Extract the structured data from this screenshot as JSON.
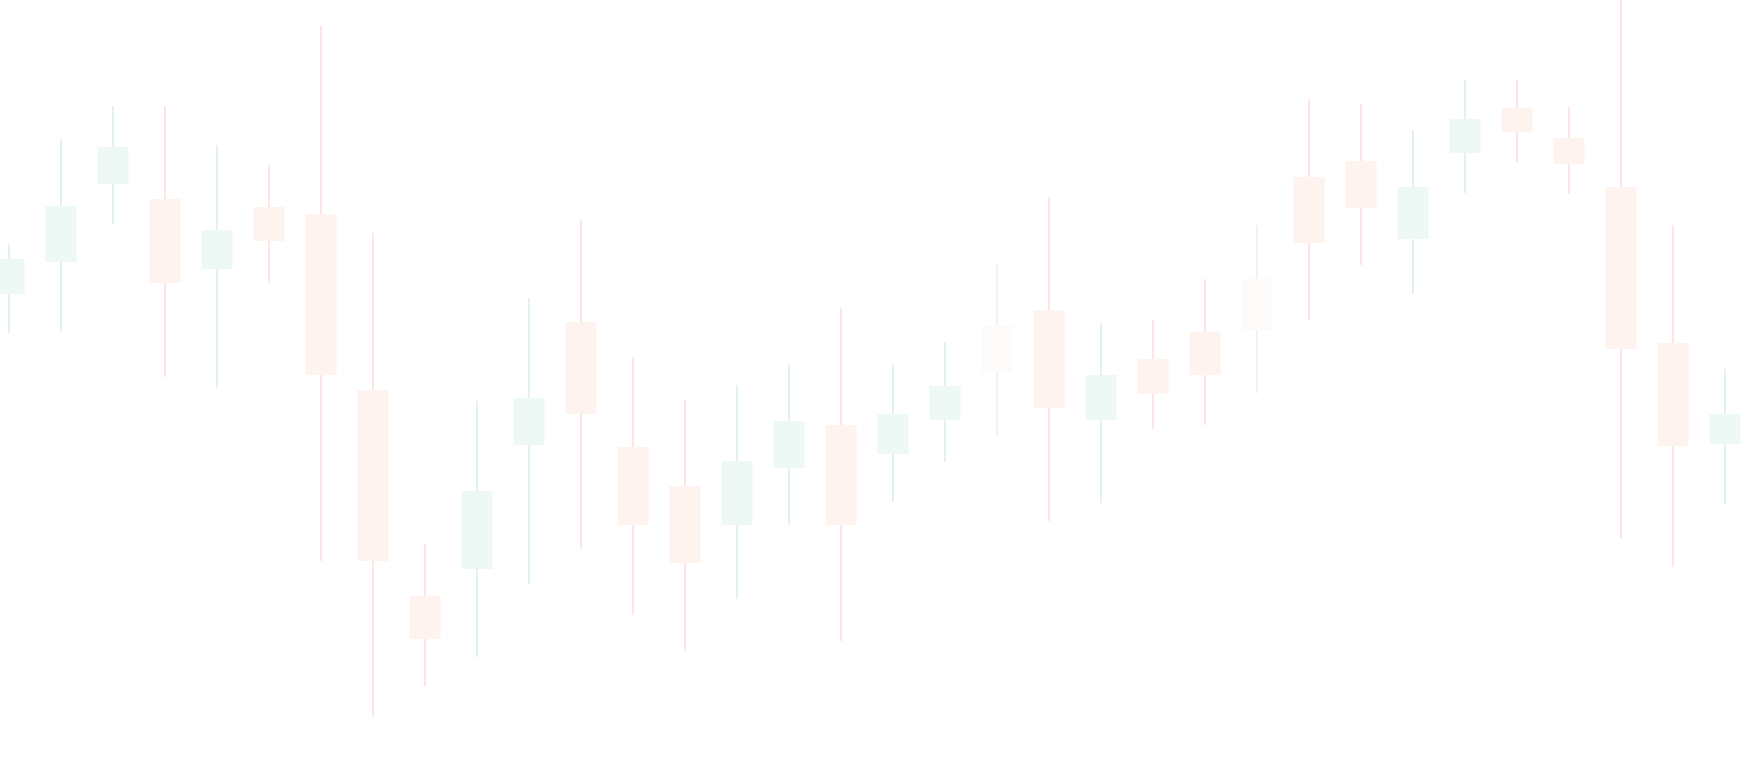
{
  "chart_data": {
    "type": "candlestick",
    "title": "",
    "xlabel": "",
    "ylabel": "",
    "axes_visible": false,
    "grid": false,
    "legend": "none",
    "ylim": [
      0,
      759
    ],
    "colors": {
      "up_body": "#eef9f6",
      "up_wick": "#e2f3ee",
      "down_body": "#fff3f0",
      "down_wick": "#fde6e1",
      "neutral_body": "#fdfafa",
      "neutral_wick": "#f8efee",
      "background": "#ffffff"
    },
    "candles": [
      {
        "dir": "up",
        "open": 465,
        "close": 500,
        "high": 515,
        "low": 426
      },
      {
        "dir": "up",
        "open": 497,
        "close": 553,
        "high": 620,
        "low": 427
      },
      {
        "dir": "up",
        "open": 575,
        "close": 612,
        "high": 653,
        "low": 535
      },
      {
        "dir": "down",
        "open": 560,
        "close": 476,
        "high": 653,
        "low": 382
      },
      {
        "dir": "up",
        "open": 490,
        "close": 529,
        "high": 614,
        "low": 371
      },
      {
        "dir": "down",
        "open": 552,
        "close": 518,
        "high": 594,
        "low": 476
      },
      {
        "dir": "down",
        "open": 545,
        "close": 384,
        "high": 733,
        "low": 198
      },
      {
        "dir": "down",
        "open": 369,
        "close": 198,
        "high": 526,
        "low": 42
      },
      {
        "dir": "down",
        "open": 163,
        "close": 120,
        "high": 215,
        "low": 73
      },
      {
        "dir": "up",
        "open": 190,
        "close": 268,
        "high": 358,
        "low": 102
      },
      {
        "dir": "up",
        "open": 314,
        "close": 361,
        "high": 461,
        "low": 175
      },
      {
        "dir": "down",
        "open": 437,
        "close": 345,
        "high": 539,
        "low": 210
      },
      {
        "dir": "down",
        "open": 312,
        "close": 234,
        "high": 402,
        "low": 144
      },
      {
        "dir": "down",
        "open": 273,
        "close": 196,
        "high": 359,
        "low": 108
      },
      {
        "dir": "up",
        "open": 234,
        "close": 298,
        "high": 374,
        "low": 160
      },
      {
        "dir": "up",
        "open": 291,
        "close": 338,
        "high": 395,
        "low": 234
      },
      {
        "dir": "down",
        "open": 334,
        "close": 234,
        "high": 451,
        "low": 118
      },
      {
        "dir": "up",
        "open": 305,
        "close": 345,
        "high": 395,
        "low": 257
      },
      {
        "dir": "up",
        "open": 339,
        "close": 373,
        "high": 417,
        "low": 297
      },
      {
        "dir": "neutral",
        "open": 433,
        "close": 387,
        "high": 495,
        "low": 324
      },
      {
        "dir": "down",
        "open": 449,
        "close": 351,
        "high": 562,
        "low": 238
      },
      {
        "dir": "up",
        "open": 339,
        "close": 384,
        "high": 436,
        "low": 256
      },
      {
        "dir": "down",
        "open": 400,
        "close": 365,
        "high": 439,
        "low": 330
      },
      {
        "dir": "down",
        "open": 427,
        "close": 384,
        "high": 480,
        "low": 334
      },
      {
        "dir": "neutral",
        "open": 480,
        "close": 429,
        "high": 534,
        "low": 366
      },
      {
        "dir": "down",
        "open": 582,
        "close": 516,
        "high": 660,
        "low": 439
      },
      {
        "dir": "down",
        "open": 598,
        "close": 551,
        "high": 655,
        "low": 494
      },
      {
        "dir": "up",
        "open": 520,
        "close": 572,
        "high": 629,
        "low": 465
      },
      {
        "dir": "up",
        "open": 606,
        "close": 640,
        "high": 679,
        "low": 566
      },
      {
        "dir": "down",
        "open": 651,
        "close": 627,
        "high": 679,
        "low": 597
      },
      {
        "dir": "down",
        "open": 621,
        "close": 595,
        "high": 652,
        "low": 565
      },
      {
        "dir": "down",
        "open": 572,
        "close": 410,
        "high": 759,
        "low": 221
      },
      {
        "dir": "down",
        "open": 416,
        "close": 313,
        "high": 534,
        "low": 192
      },
      {
        "dir": "up",
        "open": 315,
        "close": 345,
        "high": 390,
        "low": 255
      }
    ]
  }
}
